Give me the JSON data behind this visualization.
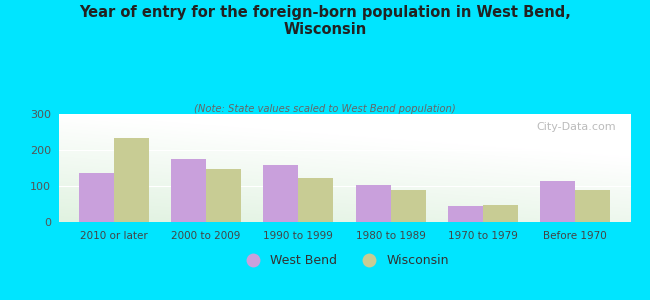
{
  "title": "Year of entry for the foreign-born population in West Bend,\nWisconsin",
  "subtitle": "(Note: State values scaled to West Bend population)",
  "categories": [
    "2010 or later",
    "2000 to 2009",
    "1990 to 1999",
    "1980 to 1989",
    "1970 to 1979",
    "Before 1970"
  ],
  "west_bend": [
    135,
    175,
    158,
    102,
    45,
    113
  ],
  "wisconsin": [
    232,
    148,
    122,
    88,
    48,
    88
  ],
  "west_bend_color": "#c9a0dc",
  "wisconsin_color": "#c8cc94",
  "background_color": "#00e5ff",
  "bar_width": 0.38,
  "ylim": [
    0,
    300
  ],
  "yticks": [
    0,
    100,
    200,
    300
  ],
  "legend_west_bend": "West Bend",
  "legend_wisconsin": "Wisconsin",
  "watermark": "City-Data.com"
}
